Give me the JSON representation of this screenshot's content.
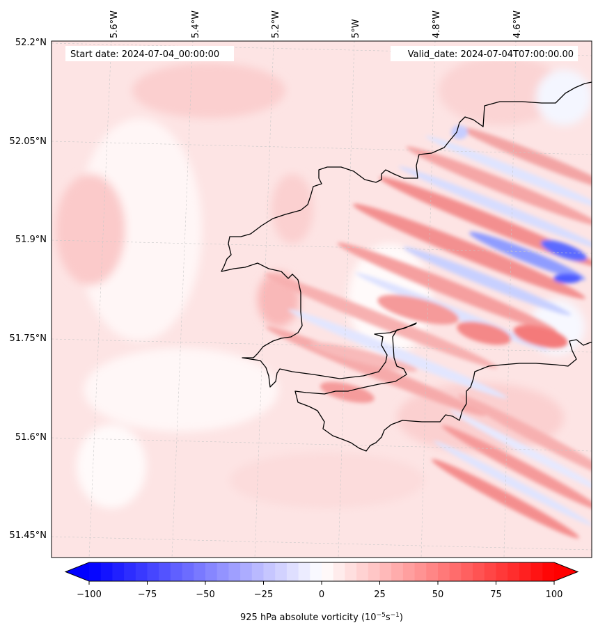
{
  "map": {
    "start_date_label": "Start date: 2024-07-04_00:00:00",
    "valid_date_label": "Valid_date: 2024-07-04T07:00:00.00",
    "lon_ticks": [
      "5.6°W",
      "5.4°W",
      "5.2°W",
      "5°W",
      "4.8°W",
      "4.6°W"
    ],
    "lat_ticks": [
      "52.2°N",
      "52.05°N",
      "51.9°N",
      "51.75°N",
      "51.6°N",
      "51.45°N"
    ],
    "background_color": "#fde4e4",
    "coastline_color": "#000000"
  },
  "colorbar": {
    "ticks": [
      "−100",
      "−75",
      "−50",
      "−25",
      "0",
      "25",
      "50",
      "75",
      "100"
    ],
    "label_prefix": "925 hPa absolute vorticity (10",
    "label_exp1": "−5",
    "label_mid": "s",
    "label_exp2": "−1",
    "label_suffix": ")",
    "min_color": "#0000ff",
    "mid_color": "#ffffff",
    "max_color": "#ff0000",
    "n_levels": 40
  }
}
